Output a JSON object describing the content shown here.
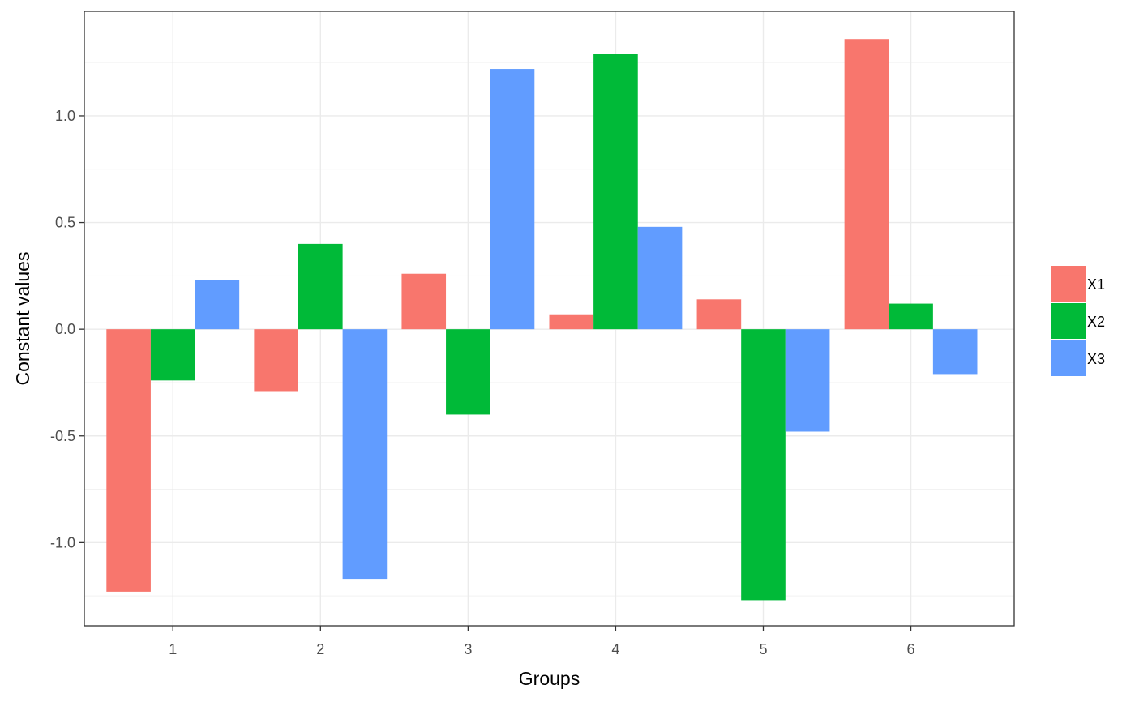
{
  "chart_data": {
    "type": "bar",
    "title": "",
    "xlabel": "Groups",
    "ylabel": "Constant values",
    "categories": [
      "1",
      "2",
      "3",
      "4",
      "5",
      "6"
    ],
    "series": [
      {
        "name": "X1",
        "color": "#F8766D",
        "values": [
          -1.23,
          -0.29,
          0.26,
          0.07,
          0.14,
          1.36
        ]
      },
      {
        "name": "X2",
        "color": "#00BA38",
        "values": [
          -0.24,
          0.4,
          -0.4,
          1.29,
          -1.27,
          0.12
        ]
      },
      {
        "name": "X3",
        "color": "#619CFF",
        "values": [
          0.23,
          -1.17,
          1.22,
          0.48,
          -0.48,
          -0.21
        ]
      }
    ],
    "yticks": [
      "-1.0",
      "-0.5",
      "0.0",
      "0.5",
      "1.0"
    ],
    "ylim": [
      -1.39,
      1.49
    ],
    "grid": true,
    "legend_position": "right"
  }
}
